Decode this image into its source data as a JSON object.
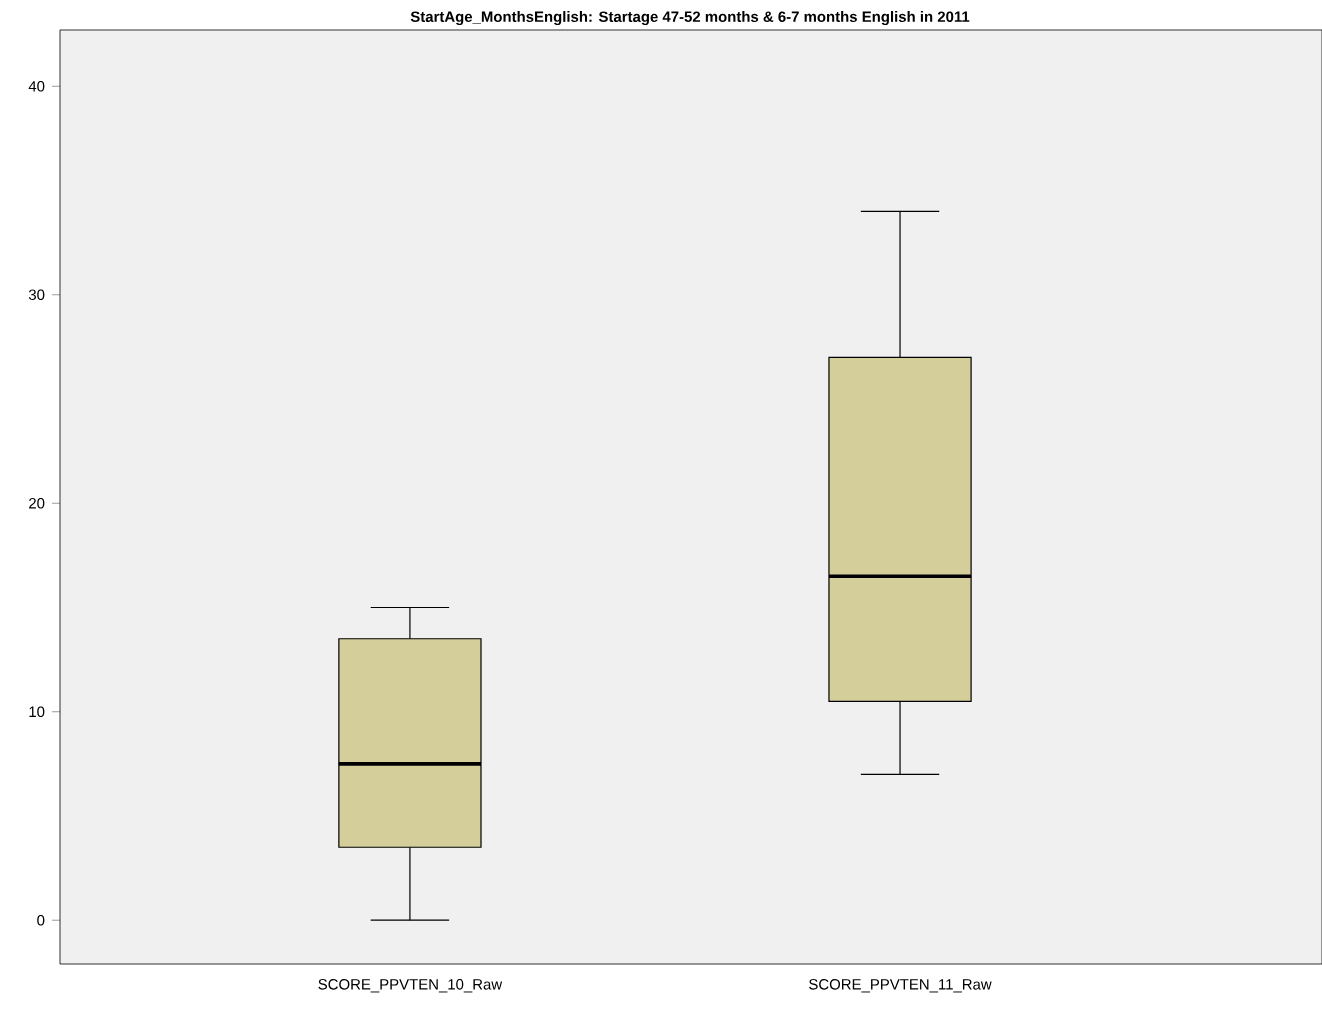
{
  "chart_data": {
    "type": "box",
    "title": "StartAge_MonthsEnglish: Startage 47-52 months & 6-7 months English in 2011",
    "categories": [
      "SCORE_PPVTEN_10_Raw",
      "SCORE_PPVTEN_11_Raw"
    ],
    "boxes": [
      {
        "low": 0,
        "q1": 3.5,
        "median": 7.5,
        "q3": 13.5,
        "high": 15
      },
      {
        "low": 7,
        "q1": 10.5,
        "median": 16.5,
        "q3": 27,
        "high": 34
      }
    ],
    "color": "#d3ce9a",
    "ylim": [
      -2.1,
      42.7
    ],
    "yticks": [
      0,
      10,
      20,
      30,
      40
    ],
    "grid": false
  }
}
